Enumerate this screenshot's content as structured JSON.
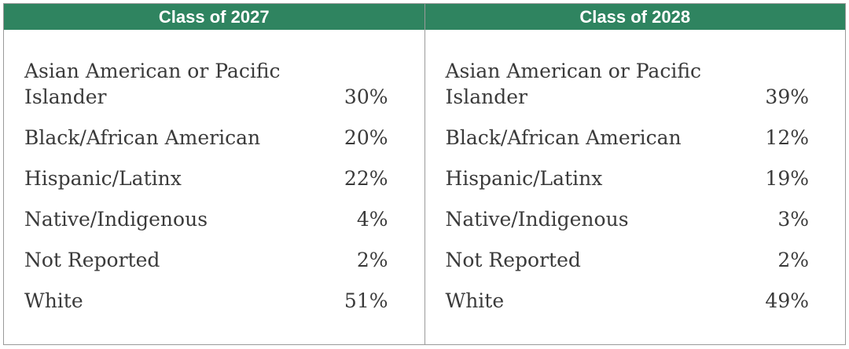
{
  "panels": [
    {
      "title": "Class of 2027",
      "rows": [
        [
          "Asian American or Pacific Islander",
          "30%"
        ],
        [
          "Black/African American",
          "20%"
        ],
        [
          "Hispanic/Latinx",
          "22%"
        ],
        [
          "Native/Indigenous",
          "4%"
        ],
        [
          "Not Reported",
          "2%"
        ],
        [
          "White",
          "51%"
        ]
      ]
    },
    {
      "title": "Class of 2028",
      "rows": [
        [
          "Asian American or Pacific Islander",
          "39%"
        ],
        [
          "Black/African American",
          "12%"
        ],
        [
          "Hispanic/Latinx",
          "19%"
        ],
        [
          "Native/Indigenous",
          "3%"
        ],
        [
          "Not Reported",
          "2%"
        ],
        [
          "White",
          "49%"
        ]
      ]
    }
  ]
}
